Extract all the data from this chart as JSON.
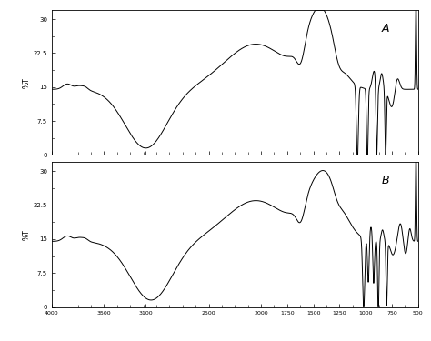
{
  "ylabel": "%T",
  "xmin": 500,
  "xmax": 4000,
  "ymin": 0,
  "ymax": 32,
  "yticks": [
    0,
    7.5,
    15,
    22.5,
    30
  ],
  "ytick_labels": [
    "0",
    "7.5",
    "15",
    "22.5",
    "30"
  ],
  "xticks": [
    4000,
    3500,
    3100,
    2500,
    2000,
    1750,
    1500,
    1250,
    1000,
    750,
    500
  ],
  "xtick_labels": [
    "4000",
    "3500",
    "3100",
    "2500",
    "2000",
    "1750",
    "1500",
    "1250",
    "1000",
    "750",
    "500"
  ],
  "label_A": "A",
  "label_B": "B",
  "background_color": "#ffffff",
  "line_color": "#000000"
}
